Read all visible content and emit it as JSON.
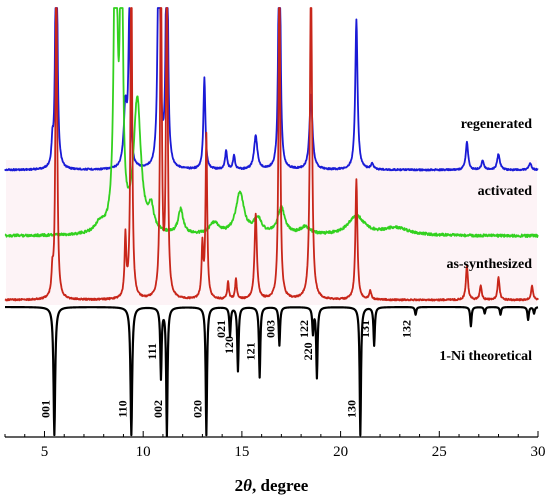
{
  "chart_data": {
    "type": "line",
    "xlabel_prefix": "2",
    "xlabel_theta": "θ",
    "xlabel_suffix": ", degree",
    "xlim": [
      3,
      30
    ],
    "xticks": [
      5,
      10,
      15,
      20,
      25,
      30
    ],
    "ylabel": "",
    "grid": false,
    "series": [
      {
        "name": "regenerated",
        "color": "#1a1ad6",
        "baseline": 0.0,
        "peaks": [
          {
            "x": 5.4,
            "h": 0.12,
            "w": 0.05
          },
          {
            "x": 5.6,
            "h": 2.0,
            "w": 0.05
          },
          {
            "x": 9.1,
            "h": 0.35,
            "w": 0.1
          },
          {
            "x": 9.3,
            "h": 0.85,
            "w": 0.06
          },
          {
            "x": 10.8,
            "h": 2.0,
            "w": 0.06
          },
          {
            "x": 11.2,
            "h": 2.0,
            "w": 0.05
          },
          {
            "x": 13.1,
            "h": 0.52,
            "w": 0.06
          },
          {
            "x": 14.2,
            "h": 0.11,
            "w": 0.06
          },
          {
            "x": 14.6,
            "h": 0.08,
            "w": 0.06
          },
          {
            "x": 15.7,
            "h": 0.19,
            "w": 0.1
          },
          {
            "x": 16.9,
            "h": 2.0,
            "w": 0.05
          },
          {
            "x": 18.5,
            "h": 0.42,
            "w": 0.09
          },
          {
            "x": 20.8,
            "h": 0.85,
            "w": 0.07
          },
          {
            "x": 21.6,
            "h": 0.03,
            "w": 0.08
          },
          {
            "x": 26.4,
            "h": 0.16,
            "w": 0.07
          },
          {
            "x": 27.2,
            "h": 0.05,
            "w": 0.08
          },
          {
            "x": 28.0,
            "h": 0.09,
            "w": 0.08
          },
          {
            "x": 29.6,
            "h": 0.04,
            "w": 0.08
          }
        ]
      },
      {
        "name": "activated",
        "color": "#33d11f",
        "baseline": 0.0,
        "peaks": [
          {
            "x": 7.8,
            "h": 0.05,
            "w": 0.3
          },
          {
            "x": 8.6,
            "h": 2.0,
            "w": 0.09
          },
          {
            "x": 8.9,
            "h": 2.0,
            "w": 0.07
          },
          {
            "x": 9.7,
            "h": 0.7,
            "w": 0.22
          },
          {
            "x": 10.4,
            "h": 0.12,
            "w": 0.15
          },
          {
            "x": 11.9,
            "h": 0.13,
            "w": 0.15
          },
          {
            "x": 13.6,
            "h": 0.06,
            "w": 0.3
          },
          {
            "x": 14.9,
            "h": 0.22,
            "w": 0.25
          },
          {
            "x": 15.8,
            "h": 0.08,
            "w": 0.25
          },
          {
            "x": 17.0,
            "h": 0.14,
            "w": 0.22
          },
          {
            "x": 18.2,
            "h": 0.04,
            "w": 0.3
          },
          {
            "x": 20.8,
            "h": 0.1,
            "w": 0.5
          },
          {
            "x": 22.8,
            "h": 0.04,
            "w": 0.8
          }
        ]
      },
      {
        "name": "as-synthesized",
        "color": "#c8261a",
        "baseline": 0.0,
        "peaks": [
          {
            "x": 5.4,
            "h": 0.13,
            "w": 0.05
          },
          {
            "x": 5.6,
            "h": 2.0,
            "w": 0.05
          },
          {
            "x": 9.1,
            "h": 0.35,
            "w": 0.05
          },
          {
            "x": 9.4,
            "h": 2.0,
            "w": 0.05
          },
          {
            "x": 10.9,
            "h": 2.0,
            "w": 0.05
          },
          {
            "x": 11.2,
            "h": 2.0,
            "w": 0.05
          },
          {
            "x": 13.0,
            "h": 0.3,
            "w": 0.05
          },
          {
            "x": 13.2,
            "h": 0.95,
            "w": 0.05
          },
          {
            "x": 14.3,
            "h": 0.1,
            "w": 0.05
          },
          {
            "x": 14.7,
            "h": 0.12,
            "w": 0.05
          },
          {
            "x": 15.7,
            "h": 0.5,
            "w": 0.07
          },
          {
            "x": 16.9,
            "h": 2.0,
            "w": 0.05
          },
          {
            "x": 18.5,
            "h": 2.0,
            "w": 0.06
          },
          {
            "x": 20.8,
            "h": 0.7,
            "w": 0.06
          },
          {
            "x": 21.5,
            "h": 0.05,
            "w": 0.06
          },
          {
            "x": 26.4,
            "h": 0.2,
            "w": 0.06
          },
          {
            "x": 27.1,
            "h": 0.08,
            "w": 0.06
          },
          {
            "x": 28.0,
            "h": 0.13,
            "w": 0.06
          },
          {
            "x": 29.7,
            "h": 0.08,
            "w": 0.06
          }
        ]
      },
      {
        "name": "1-Ni theoretical",
        "color": "#000000",
        "baseline": 0.0,
        "inverted": true,
        "peaks": [
          {
            "x": 5.5,
            "h": 1.0,
            "w": 0.05,
            "label": "001"
          },
          {
            "x": 9.4,
            "h": 1.0,
            "w": 0.05,
            "label": "110"
          },
          {
            "x": 10.9,
            "h": 0.55,
            "w": 0.04,
            "label": "111"
          },
          {
            "x": 11.2,
            "h": 1.0,
            "w": 0.04,
            "label": "002"
          },
          {
            "x": 13.2,
            "h": 1.0,
            "w": 0.04,
            "label": "020"
          },
          {
            "x": 14.4,
            "h": 0.22,
            "w": 0.04,
            "label": "021"
          },
          {
            "x": 14.8,
            "h": 0.5,
            "w": 0.04,
            "label": "120"
          },
          {
            "x": 15.9,
            "h": 0.55,
            "w": 0.04,
            "label": "121"
          },
          {
            "x": 16.9,
            "h": 0.3,
            "w": 0.04,
            "label": "003"
          },
          {
            "x": 18.6,
            "h": 0.2,
            "w": 0.04,
            "label": "122"
          },
          {
            "x": 18.8,
            "h": 0.55,
            "w": 0.04,
            "label": "220"
          },
          {
            "x": 21.0,
            "h": 1.0,
            "w": 0.04,
            "label": "130"
          },
          {
            "x": 21.7,
            "h": 0.3,
            "w": 0.04,
            "label": "131"
          },
          {
            "x": 23.8,
            "h": 0.06,
            "w": 0.04,
            "label": "132"
          },
          {
            "x": 26.6,
            "h": 0.15,
            "w": 0.04
          },
          {
            "x": 27.3,
            "h": 0.05,
            "w": 0.04
          },
          {
            "x": 28.1,
            "h": 0.06,
            "w": 0.04
          },
          {
            "x": 29.5,
            "h": 0.1,
            "w": 0.04
          },
          {
            "x": 29.8,
            "h": 0.05,
            "w": 0.04
          }
        ]
      }
    ]
  }
}
